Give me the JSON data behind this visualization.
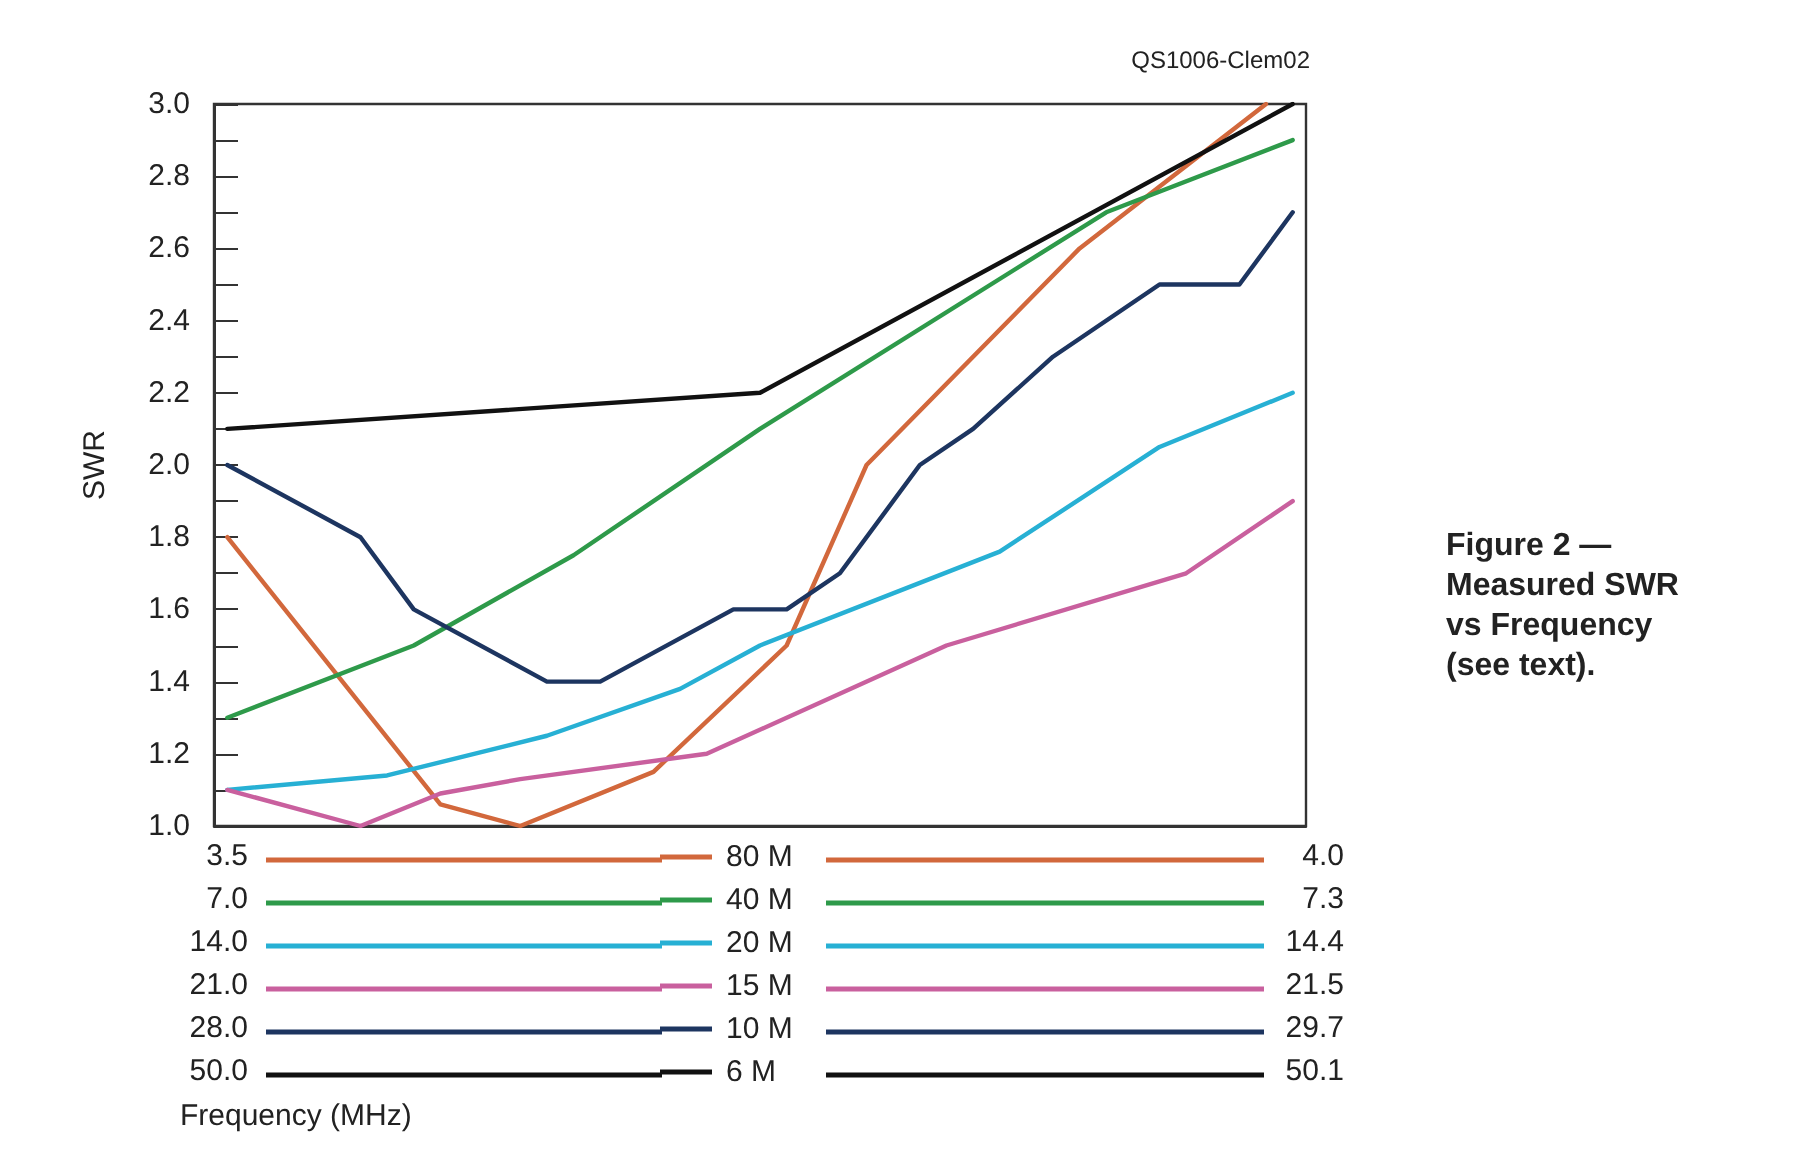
{
  "chart_data": {
    "type": "line",
    "title": "Figure 2 — Measured SWR vs Frequency (see text).",
    "ylabel": "SWR",
    "annotations": [
      "QS1006-Clem02",
      "Frequency (MHz)",
      "3.5",
      "4.0",
      "7.0",
      "7.3",
      "14.0",
      "14.4",
      "21.0",
      "21.5",
      "28.0",
      "29.7",
      "50.0",
      "50.1"
    ],
    "categories": [
      null,
      null,
      null,
      null,
      null,
      null,
      null,
      null,
      null,
      null,
      null,
      null,
      null,
      null,
      null,
      null,
      null,
      null,
      null,
      null,
      null,
      null,
      null,
      null,
      null,
      null,
      null,
      null,
      null,
      null,
      null,
      null,
      null,
      null,
      null,
      null,
      null,
      null,
      null,
      null,
      null
    ],
    "ylim": [
      1.0,
      3.0
    ],
    "yticks": [
      {
        "value": 1.0,
        "label": "1.0"
      },
      {
        "value": 1.1,
        "label": null
      },
      {
        "value": 1.2,
        "label": "1.2"
      },
      {
        "value": 1.3,
        "label": null
      },
      {
        "value": 1.4,
        "label": "1.4"
      },
      {
        "value": 1.5,
        "label": null
      },
      {
        "value": 1.6,
        "label": "1.6"
      },
      {
        "value": 1.7,
        "label": null
      },
      {
        "value": 1.8,
        "label": "1.8"
      },
      {
        "value": 1.9,
        "label": null
      },
      {
        "value": 2.0,
        "label": "2.0"
      },
      {
        "value": 2.1,
        "label": null
      },
      {
        "value": 2.2,
        "label": "2.2"
      },
      {
        "value": 2.3,
        "label": null
      },
      {
        "value": 2.4,
        "label": "2.4"
      },
      {
        "value": 2.5,
        "label": null
      },
      {
        "value": 2.6,
        "label": "2.6"
      },
      {
        "value": 2.7,
        "label": null
      },
      {
        "value": 2.8,
        "label": "2.8"
      },
      {
        "value": 2.9,
        "label": null
      },
      {
        "value": 3.0,
        "label": "3.0"
      }
    ],
    "tick_labels": "y",
    "grid": false,
    "legend": "bottom",
    "marker": "none",
    "line_style": "solid",
    "series": [
      {
        "name": "80 M",
        "color": "#d2683c",
        "values": [
          1.8,
          null,
          null,
          null,
          null,
          null,
          null,
          null,
          1.06,
          null,
          null,
          1.0,
          null,
          null,
          null,
          null,
          1.15,
          null,
          null,
          null,
          null,
          1.5,
          null,
          null,
          2.0,
          null,
          null,
          null,
          null,
          null,
          null,
          null,
          2.6,
          null,
          null,
          null,
          null,
          null,
          null,
          3.0,
          null
        ]
      },
      {
        "name": "40 M",
        "color": "#2e9a4a",
        "values": [
          1.3,
          null,
          null,
          null,
          null,
          null,
          null,
          1.5,
          null,
          null,
          null,
          null,
          null,
          1.75,
          null,
          null,
          null,
          null,
          null,
          null,
          2.1,
          null,
          null,
          null,
          null,
          null,
          null,
          null,
          null,
          null,
          null,
          null,
          null,
          2.7,
          null,
          null,
          null,
          null,
          null,
          null,
          2.9
        ]
      },
      {
        "name": "20 M",
        "color": "#27b0d4",
        "values": [
          1.1,
          null,
          null,
          null,
          null,
          null,
          1.14,
          null,
          null,
          null,
          null,
          null,
          1.25,
          null,
          null,
          null,
          null,
          1.38,
          null,
          null,
          1.5,
          null,
          null,
          null,
          null,
          null,
          null,
          null,
          null,
          1.76,
          null,
          null,
          null,
          null,
          null,
          2.05,
          null,
          null,
          null,
          null,
          2.2
        ]
      },
      {
        "name": "15 M",
        "color": "#c9609e",
        "values": [
          1.1,
          null,
          null,
          null,
          null,
          1.0,
          null,
          null,
          1.09,
          null,
          null,
          1.13,
          null,
          null,
          null,
          null,
          null,
          null,
          1.2,
          null,
          null,
          null,
          null,
          null,
          null,
          null,
          null,
          1.5,
          null,
          null,
          null,
          null,
          null,
          null,
          null,
          null,
          1.7,
          null,
          null,
          null,
          1.9
        ]
      },
      {
        "name": "10 M",
        "color": "#1d3560",
        "values": [
          2.0,
          null,
          null,
          null,
          null,
          1.8,
          null,
          1.6,
          null,
          null,
          null,
          null,
          1.4,
          null,
          1.4,
          null,
          null,
          null,
          null,
          1.6,
          null,
          1.6,
          null,
          1.7,
          null,
          null,
          2.0,
          null,
          2.1,
          null,
          null,
          2.3,
          null,
          null,
          null,
          2.5,
          null,
          null,
          2.5,
          null,
          2.7
        ]
      },
      {
        "name": "6 M",
        "color": "#111111",
        "values": [
          2.1,
          null,
          null,
          null,
          null,
          null,
          null,
          null,
          null,
          null,
          null,
          null,
          null,
          null,
          null,
          null,
          null,
          null,
          null,
          null,
          2.2,
          null,
          null,
          null,
          null,
          null,
          null,
          null,
          null,
          null,
          null,
          null,
          null,
          null,
          null,
          null,
          null,
          null,
          null,
          null,
          3.0
        ]
      }
    ]
  }
}
